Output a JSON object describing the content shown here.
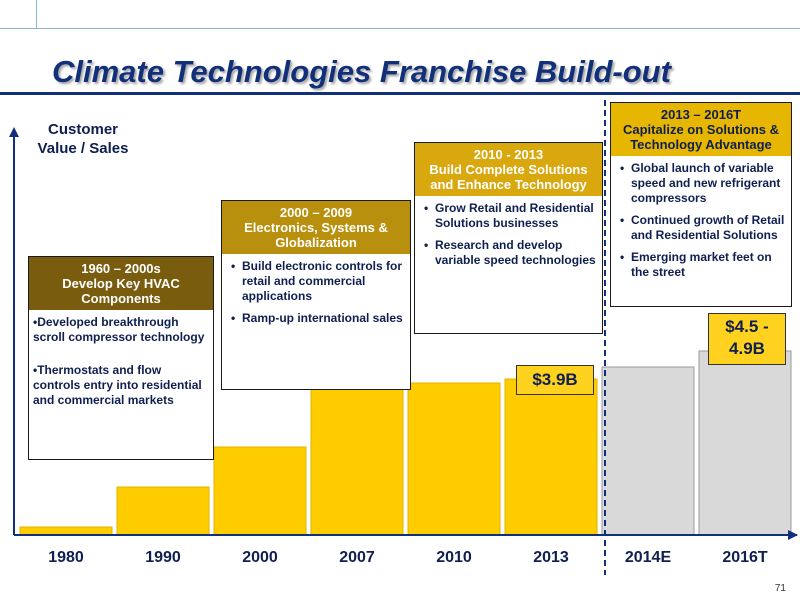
{
  "title": "Climate Technologies Franchise Build-out",
  "ylabel_line1": "Customer",
  "ylabel_line2": "Value / Sales",
  "page_number": "71",
  "colors": {
    "bar_actual": "#ffcc00",
    "bar_target": "#d9d9d9",
    "phase1_header": "#7a5c0f",
    "phase2_header": "#b8900d",
    "phase3_header": "#d9a80f",
    "phase4_header": "#e6b600",
    "callout": "#ffd21f",
    "navy": "#12307a"
  },
  "chart_data": {
    "type": "bar",
    "categories": [
      "1980",
      "1990",
      "2000",
      "2007",
      "2010",
      "2013",
      "2014E",
      "2016T"
    ],
    "values": [
      0.2,
      1.2,
      2.2,
      3.7,
      3.8,
      3.9,
      4.2,
      4.6
    ],
    "ylim": [
      0,
      10
    ],
    "grid": false,
    "legend": "none",
    "divider_after_category": "2013"
  },
  "callouts": {
    "c2013": "$3.9B",
    "c2016_line1": "$4.5 -",
    "c2016_line2": "4.9B"
  },
  "phases": {
    "p1": {
      "head1": "1960 – 2000s",
      "head2": "Develop Key HVAC",
      "head3": "Components",
      "b1": "•Developed breakthrough scroll compressor technology",
      "b2": "•Thermostats and flow controls entry into residential and commercial markets"
    },
    "p2": {
      "head1": "2000 – 2009",
      "head2": "Electronics, Systems &",
      "head3": "Globalization",
      "b1": "Build electronic controls for retail and commercial applications",
      "b2": "Ramp-up international sales"
    },
    "p3": {
      "head1": "2010 - 2013",
      "head2": "Build Complete Solutions",
      "head3": "and Enhance Technology",
      "b1": "Grow Retail and Residential Solutions businesses",
      "b2": "Research and develop variable speed technologies"
    },
    "p4": {
      "head1": "2013 – 2016T",
      "head2": "Capitalize on Solutions &",
      "head3": "Technology Advantage",
      "b1": "Global launch of variable speed and new refrigerant compressors",
      "b2": "Continued growth of Retail and Residential Solutions",
      "b3": "Emerging market feet on the street"
    }
  }
}
